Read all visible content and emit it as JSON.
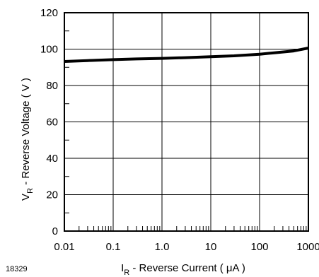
{
  "figure_id": "18329",
  "chart_data": {
    "type": "line",
    "x_scale": "log",
    "xlabel": {
      "main": "I",
      "sub": "R",
      "rest": " - Reverse Current ( μA )"
    },
    "ylabel": {
      "main": "V",
      "sub": "R",
      "rest": " - Reverse Voltage ( V )"
    },
    "xlim": [
      0.01,
      1000
    ],
    "ylim": [
      0,
      120
    ],
    "x_ticks": [
      0.01,
      0.1,
      1.0,
      10,
      100,
      1000
    ],
    "x_tick_labels": [
      "0.01",
      "0.1",
      "1.0",
      "10",
      "100",
      "1000"
    ],
    "y_ticks": [
      0,
      20,
      40,
      60,
      80,
      100,
      120
    ],
    "y_tick_labels": [
      "0",
      "20",
      "40",
      "60",
      "80",
      "100",
      "120"
    ],
    "grid": true,
    "series": [
      {
        "color": "#000000",
        "x": [
          0.01,
          0.03,
          0.1,
          0.3,
          1,
          3,
          10,
          30,
          100,
          200,
          500,
          1000
        ],
        "y": [
          93.2,
          93.7,
          94.2,
          94.6,
          94.9,
          95.3,
          95.8,
          96.3,
          97.2,
          98.0,
          99.0,
          100.6
        ]
      }
    ]
  }
}
